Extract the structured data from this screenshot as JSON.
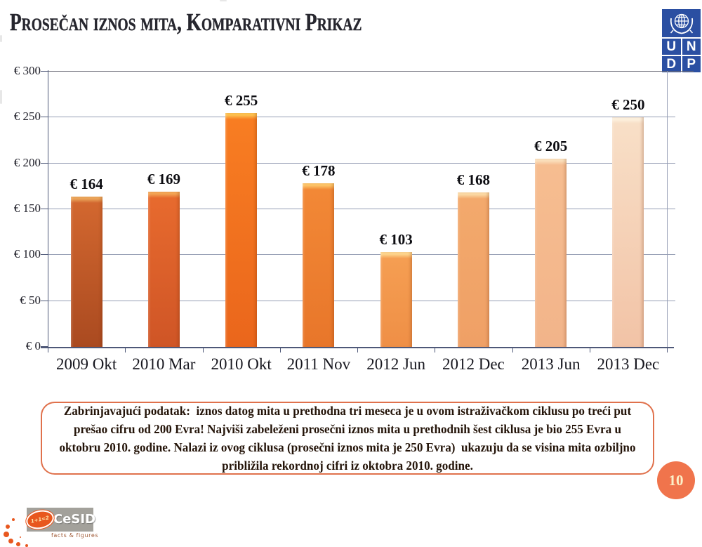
{
  "header": {
    "title": "Prosečan iznos mita, Komparativni Prikaz"
  },
  "undp_logo": {
    "letters": [
      "U",
      "N",
      "D",
      "P"
    ],
    "color": "#2b4fa2"
  },
  "chart_data": {
    "type": "bar",
    "title": "",
    "xlabel": "",
    "ylabel": "",
    "categories": [
      "2009 Okt",
      "2010 Mar",
      "2010 Okt",
      "2011 Nov",
      "2012 Jun",
      "2012 Dec",
      "2013 Jun",
      "2013 Dec"
    ],
    "values": [
      164,
      169,
      255,
      178,
      103,
      168,
      205,
      250
    ],
    "data_labels": [
      "€ 164",
      "€ 169",
      "€ 255",
      "€ 178",
      "€ 103",
      "€ 168",
      "€ 205",
      "€ 250"
    ],
    "y_tick_values": [
      0,
      50,
      100,
      150,
      200,
      250,
      300
    ],
    "y_tick_labels": [
      "€ 0",
      "€ 50",
      "€ 100",
      "€ 150",
      "€ 200",
      "€ 250",
      "€ 300"
    ],
    "ylim": [
      0,
      300
    ],
    "grid": true,
    "legend": false,
    "bar_colors": [
      {
        "hl": "#eba559",
        "top": "#d2672f",
        "bottom": "#aa4a20"
      },
      {
        "hl": "#f2a455",
        "top": "#e76a2e",
        "bottom": "#cf5526"
      },
      {
        "hl": "#fdc04f",
        "top": "#f87d22",
        "bottom": "#ea661c"
      },
      {
        "hl": "#fcc468",
        "top": "#f28836",
        "bottom": "#e8762a"
      },
      {
        "hl": "#fdd58d",
        "top": "#f59e52",
        "bottom": "#ef8f46"
      },
      {
        "hl": "#fbd9a4",
        "top": "#f3a96c",
        "bottom": "#efa066"
      },
      {
        "hl": "#fadfbb",
        "top": "#f6bd90",
        "bottom": "#f2b48a"
      },
      {
        "hl": "#fdf0dd",
        "top": "#f8dfc7",
        "bottom": "#f2c3a6"
      }
    ]
  },
  "callout": {
    "border_color": "#e0714c",
    "lines": [
      "Zabrinjavajući podatak:  iznos datog mita u prethodna tri meseca je u ovom istraživačkom ciklusu po treći put",
      "prešao cifru od 200 Evra! Najviši zabeleženi prosečni iznos mita u prethodnih šest ciklusa je bio 255 Evra u",
      "oktobru 2010. godine. Nalazi iz ovog ciklusa (prosečni iznos mita je 250 Evra)  ukazuju da se visina mita ozbiljno",
      "približila rekordnoj cifri iz oktobra 2010. godine."
    ]
  },
  "footer": {
    "page_number": "10"
  },
  "cesid_logo": {
    "name": "CeSID",
    "equation": "1+1=2",
    "tagline": "facts & figures",
    "orange": "#e8571e",
    "gray": "#a3a19b"
  }
}
